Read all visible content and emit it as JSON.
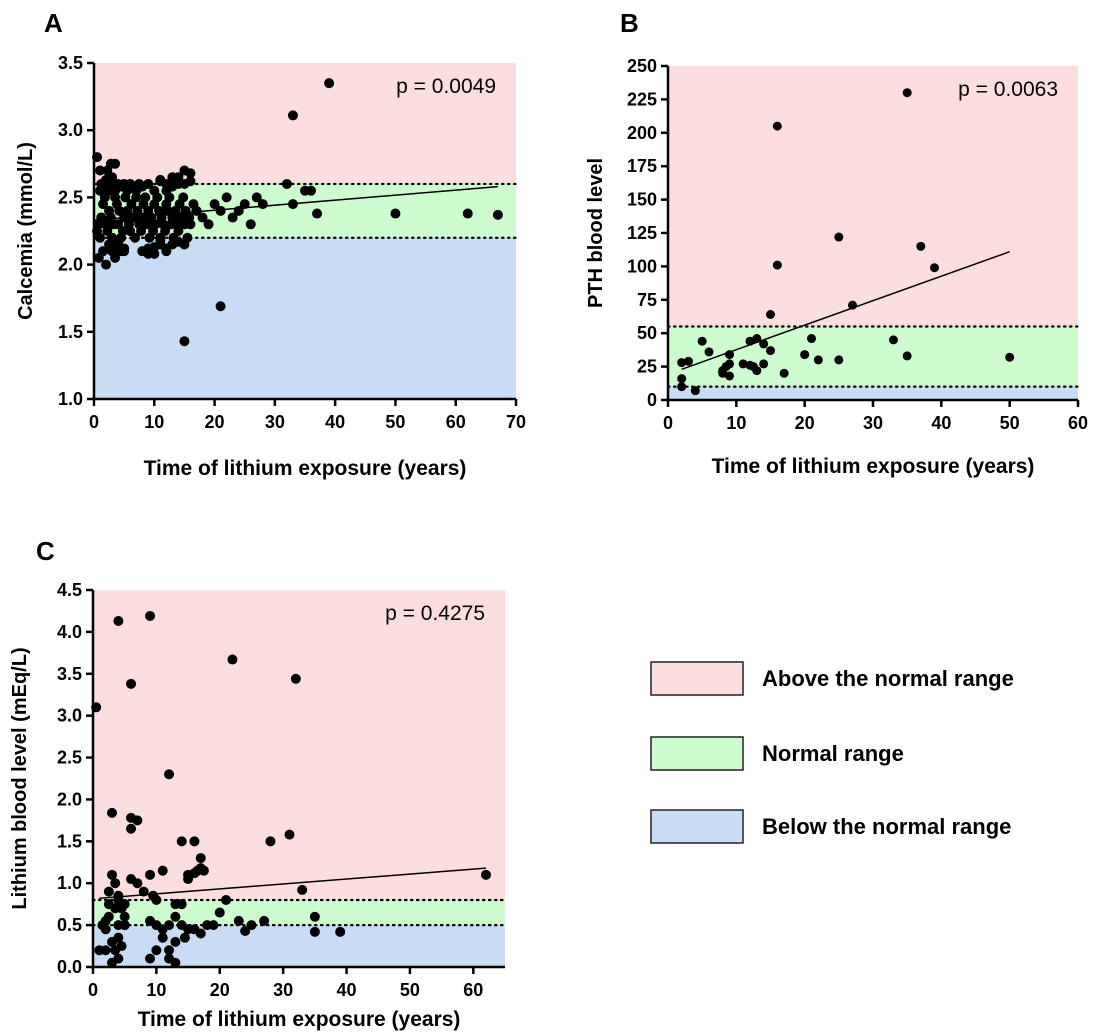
{
  "legend": {
    "above": "Above the normal range",
    "normal": "Normal range",
    "below": "Below the normal range"
  },
  "colors": {
    "above": "#fddede",
    "normal": "#cdfcce",
    "below": "#c8dcf6",
    "points": "#000000"
  },
  "chart_data": [
    {
      "panel": "A",
      "type": "scatter",
      "xlabel": "Time of lithium exposure (years)",
      "ylabel": "Calcemia (mmol/L)",
      "xlim": [
        0,
        70
      ],
      "ylim": [
        1.0,
        3.5
      ],
      "xticks": [
        0,
        10,
        20,
        30,
        40,
        50,
        60,
        70
      ],
      "yticks": [
        1.0,
        1.5,
        2.0,
        2.5,
        3.0,
        3.5
      ],
      "ytick_labels": [
        "1.0",
        "1.5",
        "2.0",
        "2.5",
        "3.0",
        "3.5"
      ],
      "normal_range": [
        2.2,
        2.6
      ],
      "annotation": "p = 0.0049",
      "fit_line": [
        [
          0,
          2.33
        ],
        [
          67,
          2.58
        ]
      ],
      "x": [
        0.5,
        0.8,
        1,
        1.2,
        1.5,
        1.8,
        2,
        2.2,
        2.5,
        2.8,
        3,
        3.2,
        3.5,
        3.8,
        4,
        4.2,
        4.5,
        4.8,
        5,
        5.2,
        5.5,
        5.8,
        6,
        6.2,
        6.5,
        6.8,
        7,
        7.2,
        7.5,
        7.8,
        8,
        8.2,
        8.5,
        8.8,
        9,
        9.2,
        9.5,
        9.8,
        10,
        10.2,
        10.5,
        10.8,
        11,
        11.2,
        11.5,
        11.8,
        12,
        12.2,
        12.5,
        12.8,
        13,
        13.2,
        13.5,
        13.8,
        14,
        14.2,
        14.5,
        14.8,
        15,
        15.2,
        15.5,
        15.8,
        16,
        16.5,
        17,
        18,
        19,
        20,
        21,
        22,
        23,
        24,
        25,
        26,
        27,
        28,
        32,
        33,
        35,
        36,
        37,
        50,
        62,
        67,
        0.8,
        1.5,
        2,
        2.5,
        3,
        3.5,
        4,
        4.5,
        5,
        2,
        2.2,
        2.8,
        3,
        3.5,
        1,
        1.2,
        1.5,
        2,
        2.5,
        3,
        3.5,
        4,
        4.5,
        5,
        5.5,
        6,
        6.5,
        7,
        7.5,
        8,
        9,
        10,
        11,
        12,
        13,
        14,
        15,
        16,
        11,
        12,
        13,
        14,
        15,
        16,
        0.5,
        1,
        2,
        2.2,
        3,
        2.5,
        4,
        5,
        9,
        10,
        11,
        12,
        13,
        14,
        15,
        15,
        21,
        33,
        39,
        8,
        9,
        10,
        11,
        12
      ],
      "y": [
        2.25,
        2.3,
        2.2,
        2.35,
        2.45,
        2.5,
        2.3,
        2.25,
        2.4,
        2.35,
        2.2,
        2.3,
        2.5,
        2.45,
        2.3,
        2.4,
        2.2,
        2.25,
        2.35,
        2.5,
        2.4,
        2.3,
        2.25,
        2.45,
        2.35,
        2.2,
        2.5,
        2.4,
        2.3,
        2.25,
        2.35,
        2.45,
        2.5,
        2.3,
        2.4,
        2.2,
        2.35,
        2.25,
        2.45,
        2.3,
        2.5,
        2.4,
        2.2,
        2.35,
        2.3,
        2.25,
        2.45,
        2.4,
        2.5,
        2.3,
        2.35,
        2.2,
        2.4,
        2.3,
        2.25,
        2.45,
        2.35,
        2.5,
        2.3,
        2.4,
        2.2,
        2.35,
        2.3,
        2.45,
        2.4,
        2.35,
        2.3,
        2.45,
        2.4,
        2.5,
        2.35,
        2.4,
        2.45,
        2.3,
        2.5,
        2.45,
        2.6,
        2.45,
        2.55,
        2.55,
        2.38,
        2.38,
        2.38,
        2.37,
        2.05,
        2.1,
        2.0,
        2.15,
        2.1,
        2.05,
        2.15,
        2.1,
        2.12,
        2.6,
        2.7,
        2.75,
        2.65,
        2.75,
        2.55,
        2.6,
        2.58,
        2.55,
        2.6,
        2.58,
        2.55,
        2.6,
        2.58,
        2.6,
        2.55,
        2.6,
        2.58,
        2.55,
        2.6,
        2.58,
        2.6,
        2.55,
        2.62,
        2.6,
        2.58,
        2.65,
        2.6,
        2.68,
        2.63,
        2.55,
        2.65,
        2.6,
        2.7,
        2.62,
        2.8,
        2.7,
        2.63,
        2.62,
        2.6,
        2.55,
        2.17,
        2.1,
        2.08,
        2.13,
        2.18,
        2.12,
        2.15,
        2.17,
        1.43,
        2.15,
        1.69,
        3.11,
        3.35,
        2.1,
        2.12,
        2.08,
        2.15,
        2.1
      ]
    },
    {
      "panel": "B",
      "type": "scatter",
      "xlabel": "Time of lithium exposure (years)",
      "ylabel": "PTH blood level",
      "xlim": [
        0,
        60
      ],
      "ylim": [
        0,
        250
      ],
      "xticks": [
        0,
        10,
        20,
        30,
        40,
        50,
        60
      ],
      "yticks": [
        0,
        25,
        50,
        75,
        100,
        125,
        150,
        175,
        200,
        225,
        250
      ],
      "ytick_labels": [
        "0",
        "25",
        "50",
        "75",
        "100",
        "125",
        "150",
        "175",
        "200",
        "225",
        "250"
      ],
      "normal_range": [
        10,
        55
      ],
      "annotation": "p = 0.0063",
      "fit_line": [
        [
          2,
          23
        ],
        [
          50,
          111
        ]
      ],
      "x": [
        2,
        2,
        2,
        3,
        4,
        5,
        6,
        8,
        8,
        8.5,
        9,
        9,
        9,
        11,
        12,
        12,
        12.5,
        13,
        13,
        14,
        14,
        15,
        15,
        16,
        16,
        17,
        20,
        21,
        22,
        25,
        25,
        27,
        33,
        35,
        35,
        37,
        39,
        50
      ],
      "y": [
        10,
        16,
        28,
        29,
        7,
        44,
        36,
        22,
        20,
        25,
        18,
        27,
        34,
        27,
        26,
        44,
        25,
        46,
        22,
        27,
        42,
        37,
        64,
        205,
        101,
        20,
        34,
        46,
        30,
        122,
        30,
        71,
        45,
        230,
        33,
        115,
        99,
        32
      ]
    },
    {
      "panel": "C",
      "type": "scatter",
      "xlabel": "Time of lithium exposure (years)",
      "ylabel": "Lithium blood level (mEq/L)",
      "xlim": [
        0,
        65
      ],
      "ylim": [
        0.0,
        4.5
      ],
      "xticks": [
        0,
        10,
        20,
        30,
        40,
        50,
        60
      ],
      "yticks": [
        0.0,
        0.5,
        1.0,
        1.5,
        2.0,
        2.5,
        3.0,
        3.5,
        4.0,
        4.5
      ],
      "ytick_labels": [
        "0.0",
        "0.5",
        "1.0",
        "1.5",
        "2.0",
        "2.5",
        "3.0",
        "3.5",
        "4.0",
        "4.5"
      ],
      "normal_range": [
        0.5,
        0.8
      ],
      "annotation": "p = 0.4275",
      "fit_line": [
        [
          1,
          0.82
        ],
        [
          62,
          1.18
        ]
      ],
      "x": [
        0.5,
        1,
        1.5,
        2,
        2,
        2.5,
        2.5,
        3,
        3,
        3,
        3.5,
        3.5,
        3.5,
        4,
        4,
        4,
        4,
        4,
        4.5,
        4.5,
        5,
        5,
        5,
        6,
        6,
        6,
        6,
        7,
        7,
        8,
        9,
        9,
        9,
        9,
        9.5,
        10,
        10,
        10,
        11,
        11,
        11,
        12,
        12,
        12,
        12,
        13,
        13,
        13,
        13,
        14,
        14,
        14,
        14.5,
        15,
        15,
        15,
        16,
        16,
        16,
        16.5,
        17,
        17,
        17,
        17.5,
        18,
        19,
        20,
        21,
        22,
        23,
        24,
        25,
        27,
        28,
        31,
        32,
        33,
        35,
        35,
        39,
        62,
        2.5,
        3,
        4,
        5,
        2,
        1.5
      ],
      "y": [
        3.1,
        0.2,
        0.5,
        0.2,
        0.45,
        0.6,
        0.9,
        1.1,
        0.3,
        0.05,
        0.7,
        0.2,
        1.0,
        4.13,
        0.8,
        0.5,
        0.1,
        0.35,
        0.7,
        0.25,
        0.75,
        0.6,
        0.5,
        1.65,
        1.78,
        1.05,
        3.38,
        1.75,
        1.0,
        0.9,
        4.19,
        0.55,
        0.1,
        1.1,
        0.85,
        0.8,
        0.5,
        0.2,
        1.15,
        0.45,
        0.35,
        2.3,
        0.5,
        0.2,
        0.1,
        0.75,
        0.6,
        0.3,
        0.05,
        1.5,
        0.75,
        0.5,
        0.35,
        1.1,
        1.05,
        0.45,
        1.5,
        1.12,
        0.45,
        1.15,
        0.4,
        1.18,
        1.3,
        1.15,
        0.5,
        0.5,
        0.65,
        0.8,
        3.67,
        0.55,
        0.43,
        0.5,
        0.55,
        1.5,
        1.58,
        3.44,
        0.92,
        0.6,
        0.42,
        0.42,
        1.1,
        0.75,
        1.84,
        0.85,
        0.5,
        0.55,
        0.5
      ]
    }
  ]
}
